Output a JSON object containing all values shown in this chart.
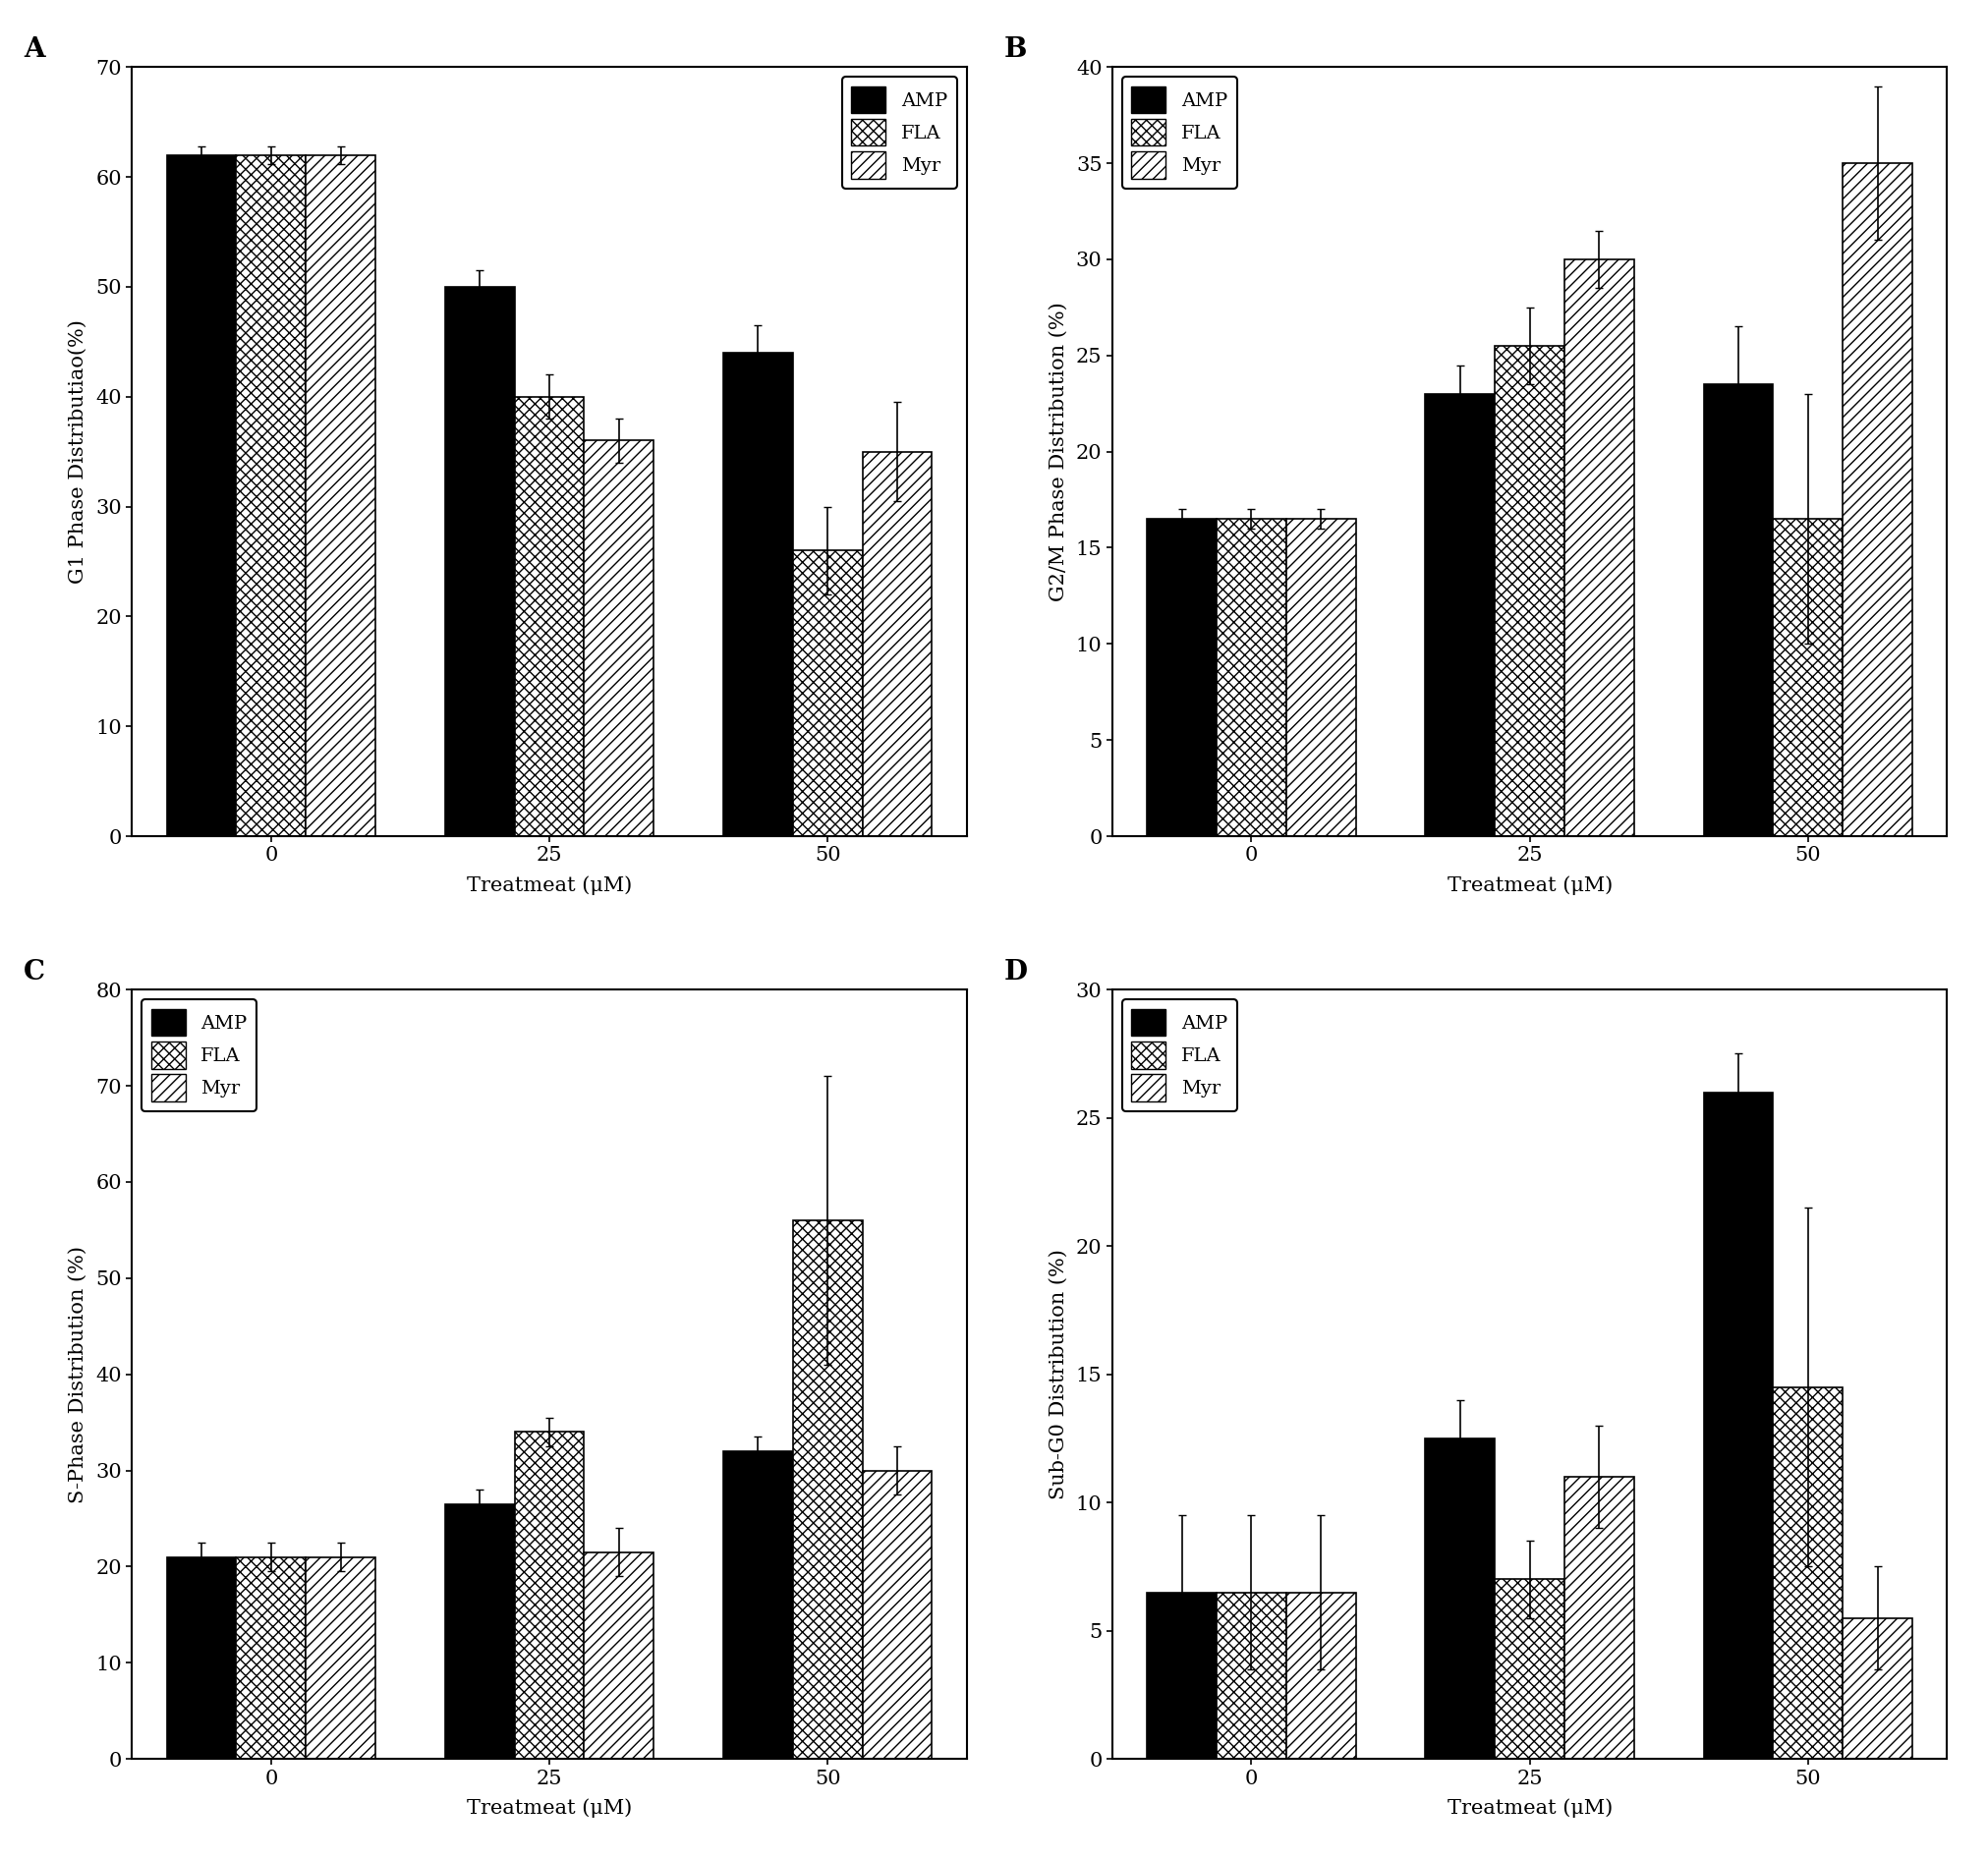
{
  "panels": [
    {
      "label": "A",
      "ylabel": "G1 Phase Distributiao(%)",
      "ylim": [
        0,
        70
      ],
      "yticks": [
        0,
        10,
        20,
        30,
        40,
        50,
        60,
        70
      ],
      "groups": [
        0,
        25,
        50
      ],
      "AMP": [
        62,
        50,
        44
      ],
      "FLA": [
        62,
        40,
        26
      ],
      "Myr": [
        62,
        36,
        35
      ],
      "AMP_err": [
        0.8,
        1.5,
        2.5
      ],
      "FLA_err": [
        0.8,
        2.0,
        4.0
      ],
      "Myr_err": [
        0.8,
        2.0,
        4.5
      ],
      "legend_loc": "upper right"
    },
    {
      "label": "B",
      "ylabel": "G2/M Phase Distribution (%)",
      "ylim": [
        0,
        40
      ],
      "yticks": [
        0,
        5,
        10,
        15,
        20,
        25,
        30,
        35,
        40
      ],
      "groups": [
        0,
        25,
        50
      ],
      "AMP": [
        16.5,
        23,
        23.5
      ],
      "FLA": [
        16.5,
        25.5,
        16.5
      ],
      "Myr": [
        16.5,
        30,
        35
      ],
      "AMP_err": [
        0.5,
        1.5,
        3.0
      ],
      "FLA_err": [
        0.5,
        2.0,
        6.5
      ],
      "Myr_err": [
        0.5,
        1.5,
        4.0
      ],
      "legend_loc": "upper left"
    },
    {
      "label": "C",
      "ylabel": "S-Phase Distribution (%)",
      "ylim": [
        0,
        80
      ],
      "yticks": [
        0,
        10,
        20,
        30,
        40,
        50,
        60,
        70,
        80
      ],
      "groups": [
        0,
        25,
        50
      ],
      "AMP": [
        21,
        26.5,
        32
      ],
      "FLA": [
        21,
        34,
        56
      ],
      "Myr": [
        21,
        21.5,
        30
      ],
      "AMP_err": [
        1.5,
        1.5,
        1.5
      ],
      "FLA_err": [
        1.5,
        1.5,
        15
      ],
      "Myr_err": [
        1.5,
        2.5,
        2.5
      ],
      "legend_loc": "upper left"
    },
    {
      "label": "D",
      "ylabel": "Sub-G0 Distribution (%)",
      "ylim": [
        0,
        30
      ],
      "yticks": [
        0,
        5,
        10,
        15,
        20,
        25,
        30
      ],
      "groups": [
        0,
        25,
        50
      ],
      "AMP": [
        6.5,
        12.5,
        26
      ],
      "FLA": [
        6.5,
        7.0,
        14.5
      ],
      "Myr": [
        6.5,
        11,
        5.5
      ],
      "AMP_err": [
        3.0,
        1.5,
        1.5
      ],
      "FLA_err": [
        3.0,
        1.5,
        7.0
      ],
      "Myr_err": [
        3.0,
        2.0,
        2.0
      ],
      "legend_loc": "upper left"
    }
  ],
  "xlabel": "Treatmeat (μM)",
  "bar_width": 0.25,
  "legend_labels": [
    "AMP",
    "FLA",
    "Myr"
  ],
  "background_color": "#ffffff",
  "amp_color": "#000000",
  "fla_hatch": "xxx",
  "myr_hatch": "///",
  "capsize": 3
}
